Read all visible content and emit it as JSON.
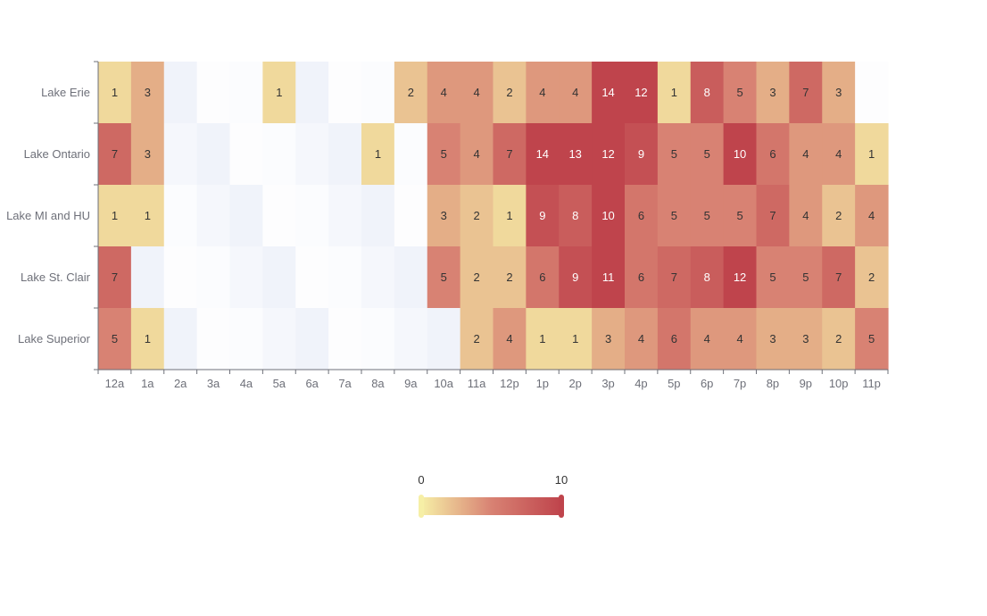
{
  "chart_data": {
    "type": "heatmap",
    "title": "",
    "xlabel": "",
    "ylabel": "",
    "x_categories": [
      "12a",
      "1a",
      "2a",
      "3a",
      "4a",
      "5a",
      "6a",
      "7a",
      "8a",
      "9a",
      "10a",
      "11a",
      "12p",
      "1p",
      "2p",
      "3p",
      "4p",
      "5p",
      "6p",
      "7p",
      "8p",
      "9p",
      "10p",
      "11p"
    ],
    "y_categories": [
      "Lake Erie",
      "Lake Ontario",
      "Lake MI and HU",
      "Lake St. Clair",
      "Lake Superior"
    ],
    "values": [
      [
        1,
        3,
        "-",
        "-",
        "-",
        1,
        "-",
        "-",
        "-",
        2,
        4,
        4,
        2,
        4,
        4,
        14,
        12,
        1,
        8,
        5,
        3,
        7,
        3,
        "-"
      ],
      [
        7,
        3,
        "-",
        "-",
        "-",
        "-",
        "-",
        "-",
        1,
        "-",
        5,
        4,
        7,
        14,
        13,
        12,
        9,
        5,
        5,
        10,
        6,
        4,
        4,
        1
      ],
      [
        1,
        1,
        "-",
        "-",
        "-",
        "-",
        "-",
        "-",
        "-",
        "-",
        3,
        2,
        1,
        9,
        8,
        10,
        6,
        5,
        5,
        5,
        7,
        4,
        2,
        4
      ],
      [
        7,
        "-",
        "-",
        "-",
        "-",
        "-",
        "-",
        "-",
        "-",
        "-",
        5,
        2,
        2,
        6,
        9,
        11,
        6,
        7,
        8,
        12,
        5,
        5,
        7,
        2
      ],
      [
        5,
        1,
        "-",
        "-",
        "-",
        "-",
        "-",
        "-",
        "-",
        "-",
        "-",
        2,
        4,
        1,
        1,
        3,
        4,
        6,
        4,
        4,
        3,
        3,
        2,
        5
      ]
    ],
    "visual_map": {
      "min": 0,
      "max": 10,
      "min_label": "0",
      "max_label": "10"
    },
    "colors": {
      "range": [
        "#f6efa6",
        "#d88273",
        "#bf444c"
      ],
      "empty_cells": [
        "#fbfcfe",
        "#f5f7fc",
        "#f0f3fa",
        "#fdfdfe"
      ],
      "axis_line": "#6e7079",
      "label_dark": "#333333",
      "label_light": "#ffffff"
    }
  }
}
